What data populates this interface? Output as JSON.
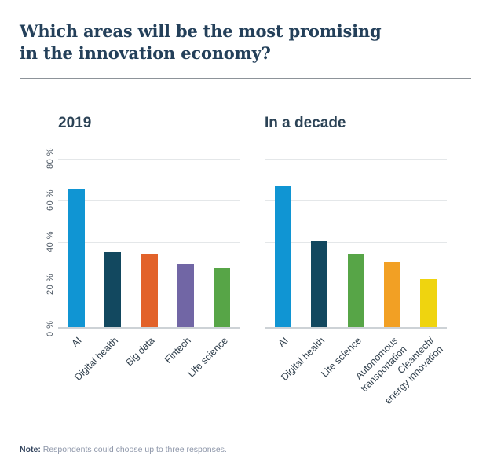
{
  "page": {
    "title": "Which areas will be the most promising in the innovation economy?",
    "note_label": "Note:",
    "note_text": " Respondents could choose up to three responses."
  },
  "colors": {
    "title_text": "#24405A",
    "heading_text": "#2C4356",
    "axis_text": "#4C5763",
    "divider": "#8D9399",
    "gridline": "#E4E7E9"
  },
  "chart_data": [
    {
      "type": "bar",
      "title": "2019",
      "categories": [
        "AI",
        "Digital health",
        "Big data",
        "Fintech",
        "Life science"
      ],
      "values": [
        66,
        36,
        35,
        30,
        28
      ],
      "bar_colors": [
        "#1095D3",
        "#12485F",
        "#E2622A",
        "#7166A5",
        "#57A547"
      ],
      "ylim": [
        0,
        90
      ],
      "gridlines": [
        20,
        40,
        60,
        80
      ],
      "y_ticks": [
        {
          "label": "0 %",
          "v": 0
        },
        {
          "label": "20 %",
          "v": 20
        },
        {
          "label": "40 %",
          "v": 40
        },
        {
          "label": "60 %",
          "v": 60
        },
        {
          "label": "80 %",
          "v": 80
        }
      ],
      "show_y_labels": true,
      "legend": "none",
      "grid": true
    },
    {
      "type": "bar",
      "title": "In a decade",
      "categories": [
        "AI",
        "Digital health",
        "Life science",
        "Autonomous\ntransportation",
        "Cleantech/\nenergy innovation"
      ],
      "values": [
        67,
        41,
        35,
        31,
        23
      ],
      "bar_colors": [
        "#1095D3",
        "#12485F",
        "#57A547",
        "#F2A024",
        "#EFD40F"
      ],
      "ylim": [
        0,
        90
      ],
      "gridlines": [
        20,
        40,
        60,
        80
      ],
      "y_ticks": [],
      "show_y_labels": false,
      "legend": "none",
      "grid": true
    }
  ]
}
